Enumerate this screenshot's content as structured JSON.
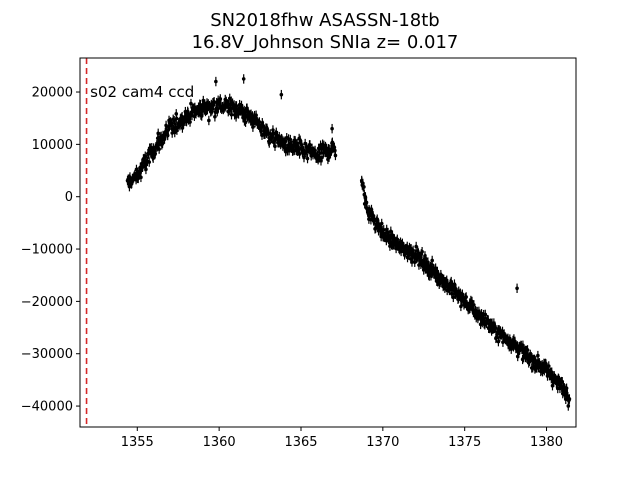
{
  "chart_data": {
    "type": "scatter",
    "title_line1": "SN2018fhw  ASASSN-18tb",
    "title_line2": "16.8V_Johnson SNIa z= 0.017",
    "xlabel": "",
    "ylabel": "",
    "xlim": [
      1351.5,
      1381.8
    ],
    "ylim": [
      -44000,
      26500
    ],
    "x_ticks": [
      1355,
      1360,
      1365,
      1370,
      1375,
      1380
    ],
    "x_tick_labels": [
      "1355",
      "1360",
      "1365",
      "1370",
      "1375",
      "1380"
    ],
    "y_ticks": [
      20000,
      10000,
      0,
      -10000,
      -20000,
      -30000,
      -40000
    ],
    "y_tick_labels": [
      "20000",
      "10000",
      "0",
      "−10000",
      "−20000",
      "−30000",
      "−40000"
    ],
    "grid": false,
    "marker_color": "#000000",
    "vline": {
      "x": 1351.9,
      "color": "#d62728",
      "style": "dashed"
    },
    "annotation": {
      "text": "s02 cam4 ccd",
      "x": 1352.0,
      "y": 20000
    },
    "segments": [
      {
        "x_start": 1354.4,
        "x_end": 1367.1,
        "n": 420,
        "error": 900,
        "trend_x": [
          1354.4,
          1355.0,
          1356.0,
          1357.0,
          1358.0,
          1359.0,
          1360.0,
          1361.0,
          1362.0,
          1363.0,
          1364.0,
          1365.0,
          1366.0,
          1367.1
        ],
        "trend_y": [
          2500,
          4000,
          9000,
          13000,
          15500,
          17000,
          17500,
          17000,
          15000,
          12000,
          10000,
          9000,
          8000,
          9500
        ],
        "scatter": 2200
      },
      {
        "x_start": 1368.7,
        "x_end": 1381.4,
        "n": 520,
        "error": 900,
        "trend_x": [
          1368.7,
          1369.0,
          1370.0,
          1371.0,
          1372.0,
          1373.0,
          1374.0,
          1375.0,
          1376.0,
          1377.0,
          1378.0,
          1379.0,
          1380.0,
          1381.4
        ],
        "trend_y": [
          3500,
          -2000,
          -7000,
          -9500,
          -11000,
          -14000,
          -17000,
          -20000,
          -23000,
          -26000,
          -28000,
          -31000,
          -33000,
          -38000
        ],
        "scatter": 1800
      }
    ],
    "outliers": [
      {
        "x": 1363.8,
        "y": 19500
      },
      {
        "x": 1366.9,
        "y": 13000
      },
      {
        "x": 1361.5,
        "y": 22500
      },
      {
        "x": 1378.2,
        "y": -17500
      },
      {
        "x": 1359.8,
        "y": 22000
      }
    ]
  }
}
